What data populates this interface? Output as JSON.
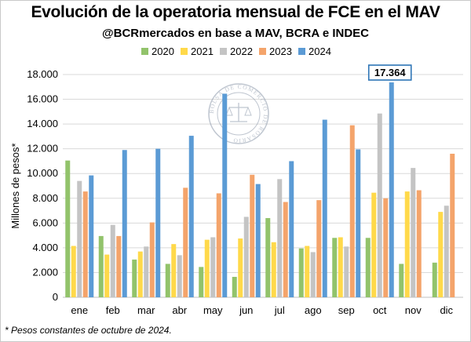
{
  "title": "Evolución de la operatoria mensual de FCE en el MAV",
  "subtitle": "@BCRmercados en base a MAV, BCRA e INDEC",
  "footnote": "* Pesos constantes de octubre de 2024.",
  "watermark": {
    "text": "BOLSA DE COMERCIO DE ROSARIO"
  },
  "chart_data": {
    "type": "bar",
    "ylabel": "Millones de pesos*",
    "xlabel": "",
    "ylim": [
      0,
      18000
    ],
    "ytick_values": [
      0,
      2000,
      4000,
      6000,
      8000,
      10000,
      12000,
      14000,
      16000,
      18000
    ],
    "ytick_labels": [
      "0",
      "2.000",
      "4.000",
      "6.000",
      "8.000",
      "10.000",
      "12.000",
      "14.000",
      "16.000",
      "18.000"
    ],
    "grid": true,
    "legend_position": "top",
    "categories": [
      "ene",
      "feb",
      "mar",
      "abr",
      "may",
      "jun",
      "jul",
      "ago",
      "sep",
      "oct",
      "nov",
      "dic"
    ],
    "series": [
      {
        "name": "2020",
        "color": "#92c36b",
        "values": [
          11050,
          4950,
          3050,
          2700,
          2450,
          1650,
          6400,
          3950,
          4800,
          4800,
          2700,
          2800
        ]
      },
      {
        "name": "2021",
        "color": "#ffd94a",
        "values": [
          4150,
          3450,
          3700,
          4300,
          4650,
          4750,
          4450,
          4150,
          4850,
          8450,
          8550,
          6900
        ]
      },
      {
        "name": "2022",
        "color": "#c4c4c4",
        "values": [
          9400,
          5850,
          4100,
          3400,
          4850,
          6500,
          9550,
          3650,
          4100,
          14850,
          10450,
          7400
        ]
      },
      {
        "name": "2023",
        "color": "#f4a46b",
        "values": [
          8550,
          4950,
          6050,
          8850,
          8400,
          9900,
          7700,
          7850,
          13900,
          8000,
          8650,
          11600
        ]
      },
      {
        "name": "2024",
        "color": "#5b9bd5",
        "values": [
          9850,
          11900,
          12000,
          13050,
          16450,
          9150,
          11000,
          14350,
          11950,
          17364,
          null,
          null
        ]
      }
    ],
    "annotations": [
      {
        "text": "17.364",
        "category": "oct",
        "series": "2024"
      }
    ]
  }
}
